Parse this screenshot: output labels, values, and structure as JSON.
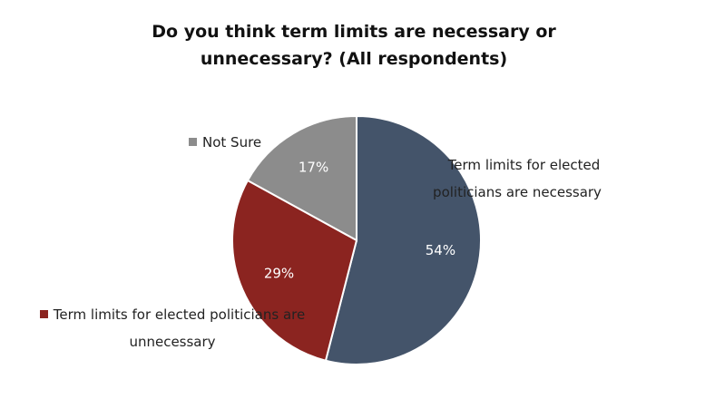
{
  "chart_data": {
    "type": "pie",
    "title": "Do you think term limits are necessary or unnecessary? (All respondents)",
    "categories": [
      "Term limits for elected politicians are necessary",
      "Term limits for elected politicians are unnecessary",
      "Not Sure"
    ],
    "values": [
      54,
      29,
      17
    ],
    "value_labels": [
      "54%",
      "29%",
      "17%"
    ],
    "colors": [
      "#44546a",
      "#8b2420",
      "#8c8c8c"
    ]
  }
}
